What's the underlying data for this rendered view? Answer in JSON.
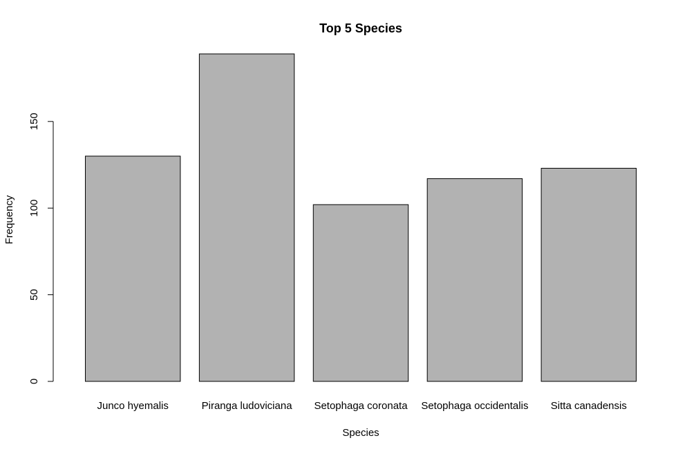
{
  "chart_data": {
    "type": "bar",
    "title": "Top 5 Species",
    "xlabel": "Species",
    "ylabel": "Frequency",
    "categories": [
      "Junco hyemalis",
      "Piranga ludoviciana",
      "Setophaga coronata",
      "Setophaga occidentalis",
      "Sitta canadensis"
    ],
    "values": [
      130,
      189,
      102,
      117,
      123
    ],
    "y_ticks": [
      "0",
      "50",
      "100",
      "150"
    ],
    "ylim": [
      0,
      189
    ],
    "grid": false,
    "legend": "none",
    "bar_color": "#b2b2b2",
    "bar_border_color": "#000000"
  }
}
